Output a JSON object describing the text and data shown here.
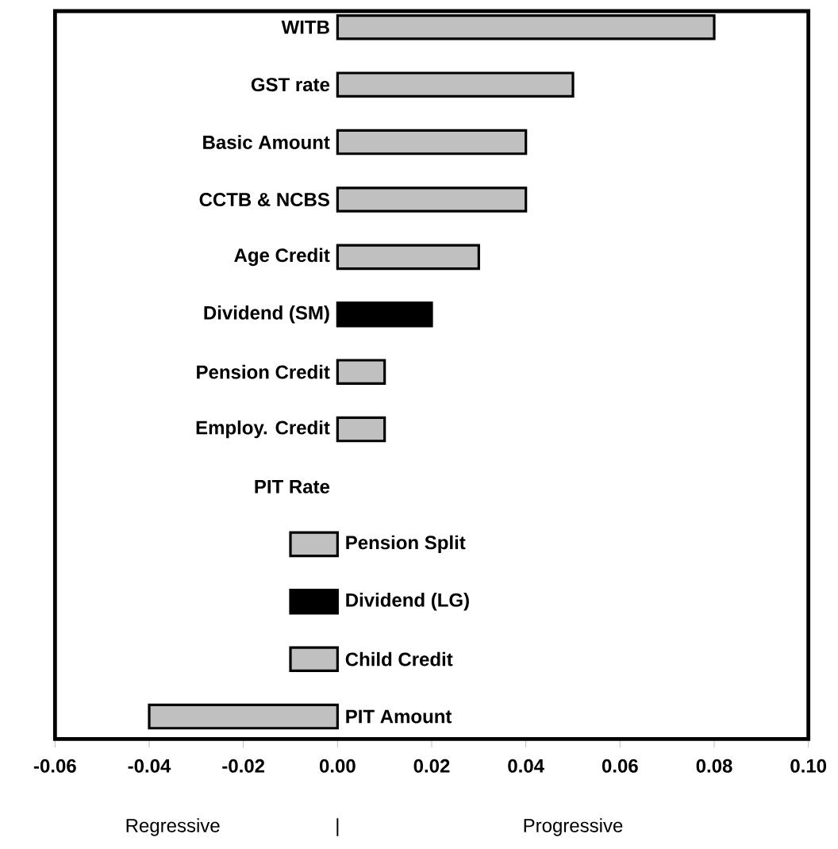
{
  "chart_data": {
    "type": "bar",
    "orientation": "horizontal",
    "categories": [
      "WITB",
      "GST rate",
      "Basic Amount",
      "CCTB & NCBS",
      "Age Credit",
      "Dividend (SM)",
      "Pension Credit",
      "Employ. Credit",
      "PIT Rate",
      "Pension Split",
      "Dividend (LG)",
      "Child Credit",
      "PIT Amount"
    ],
    "values": [
      0.08,
      0.05,
      0.04,
      0.04,
      0.03,
      0.02,
      0.01,
      0.01,
      0,
      -0.01,
      -0.01,
      -0.01,
      -0.04
    ],
    "colors": [
      "#c0c0c0",
      "#c0c0c0",
      "#c0c0c0",
      "#c0c0c0",
      "#c0c0c0",
      "#000000",
      "#c0c0c0",
      "#c0c0c0",
      "#c0c0c0",
      "#c0c0c0",
      "#000000",
      "#c0c0c0",
      "#c0c0c0"
    ],
    "xlim": [
      -0.06,
      0.1
    ],
    "xticks": [
      {
        "value": -0.06,
        "label": "-0.06"
      },
      {
        "value": -0.04,
        "label": "-0.04"
      },
      {
        "value": -0.02,
        "label": "-0.02"
      },
      {
        "value": 0,
        "label": "0.00"
      },
      {
        "value": 0.02,
        "label": "0.02"
      },
      {
        "value": 0.04,
        "label": "0.04"
      },
      {
        "value": 0.06,
        "label": "0.06"
      },
      {
        "value": 0.08,
        "label": "0.08"
      },
      {
        "value": 0.1,
        "label": "0.10"
      }
    ],
    "annotations": [
      "Regressive",
      "|",
      "Progressive"
    ]
  }
}
